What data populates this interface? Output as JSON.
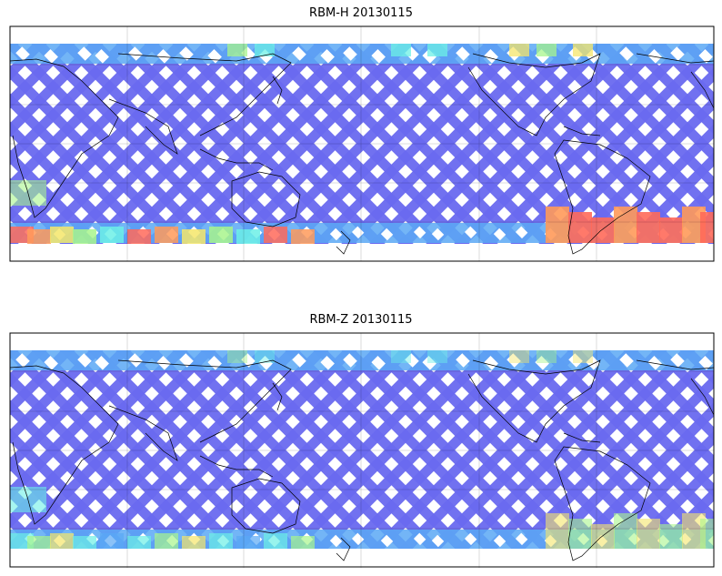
{
  "panels": [
    {
      "title": "RBM-H 20130115",
      "colors": {
        "swath_base": "#6a6af0",
        "swath_mid": "#5aa8f5",
        "swath_cyan": "#6cf0e6",
        "swath_green": "#a8f58c",
        "swath_yellow": "#f5e66a",
        "swath_orange": "#ff9a5a",
        "swath_red": "#ff6a5a"
      }
    },
    {
      "title": "RBM-Z 20130115",
      "colors": {
        "swath_base": "#6a6af0",
        "swath_mid": "#5aa8f5",
        "swath_cyan": "#6cf0e6",
        "swath_green": "#a8f58c",
        "swath_yellow": "#f5e66a"
      }
    }
  ],
  "map": {
    "projection": "equirectangular",
    "gridlines": true,
    "coastlines": true,
    "frame_color": "#000000"
  }
}
